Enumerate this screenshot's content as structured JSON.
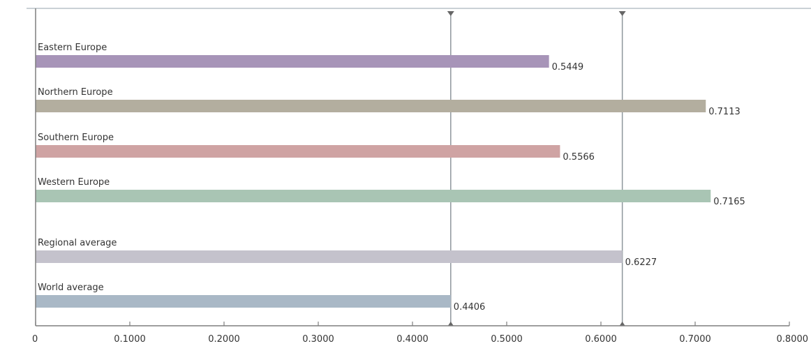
{
  "chart_data": {
    "type": "bar",
    "orientation": "horizontal",
    "categories": [
      "Eastern Europe",
      "Northern Europe",
      "Southern Europe",
      "Western Europe",
      "Regional average",
      "World average"
    ],
    "values": [
      0.5449,
      0.7113,
      0.5566,
      0.7165,
      0.6227,
      0.4406
    ],
    "value_labels": [
      "0.5449",
      "0.7113",
      "0.5566",
      "0.7165",
      "0.6227",
      "0.4406"
    ],
    "colors": [
      "#a794b8",
      "#b3ae9f",
      "#cfa3a3",
      "#a9c5b4",
      "#c4c2cc",
      "#a9b8c6"
    ],
    "x_ticks": [
      "0",
      "0.1000",
      "0.2000",
      "0.3000",
      "0.4000",
      "0.5000",
      "0.6000",
      "0.7000",
      "0.8000"
    ],
    "xlim": [
      0,
      0.8
    ],
    "reference_lines": [
      0.4406,
      0.6227
    ],
    "grid": false,
    "title": "",
    "xlabel": "",
    "ylabel": ""
  }
}
